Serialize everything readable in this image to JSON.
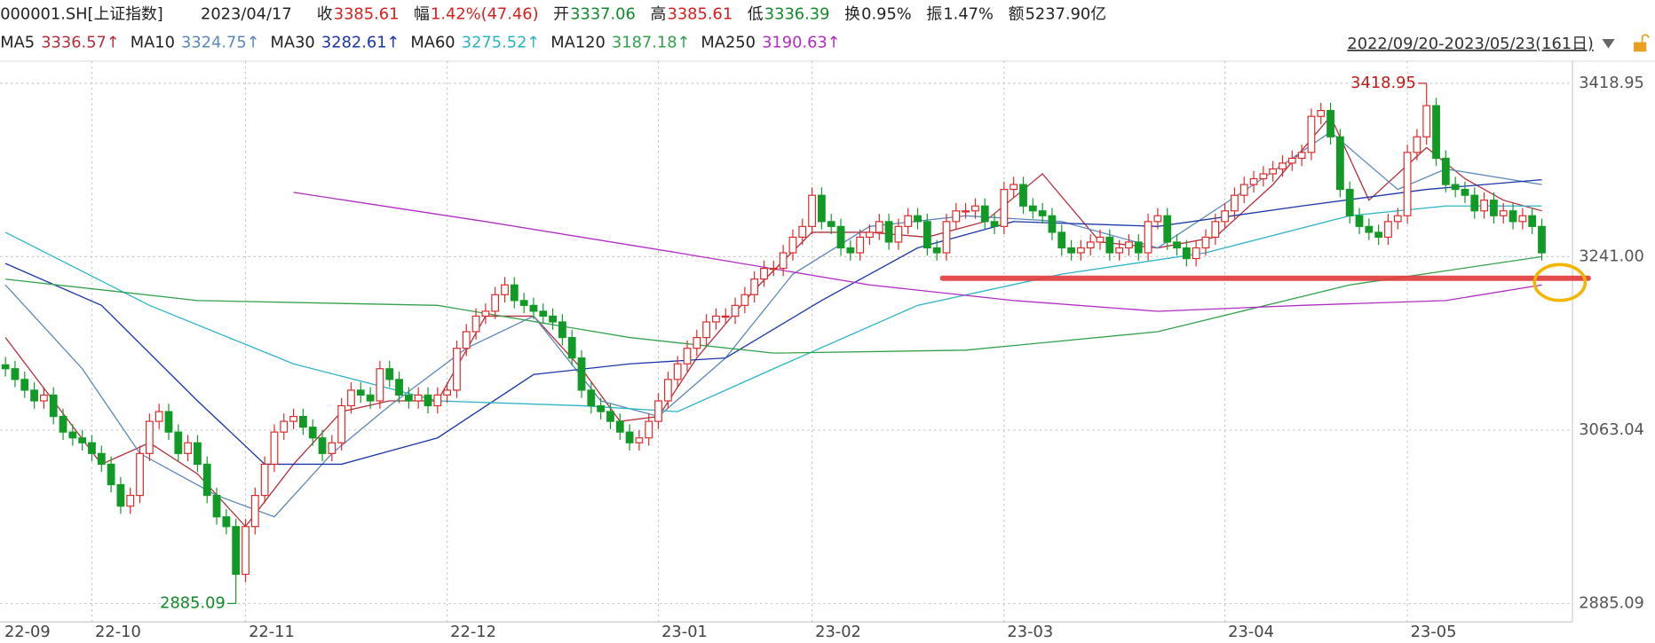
{
  "chart_data": {
    "type": "candlestick",
    "symbol": "000001.SH[上证指数]",
    "date": "2023/04/17",
    "quote": [
      {
        "label": "收",
        "value": "3385.61",
        "color": "#d81e1e"
      },
      {
        "label": "幅",
        "value": "1.42%(47.46)",
        "color": "#d81e1e"
      },
      {
        "label": "开",
        "value": "3337.06",
        "color": "#138a2a"
      },
      {
        "label": "高",
        "value": "3385.61",
        "color": "#d81e1e"
      },
      {
        "label": "低",
        "value": "3336.39",
        "color": "#138a2a"
      },
      {
        "label": "换",
        "value": "0.95%",
        "color": "#222222"
      },
      {
        "label": "振",
        "value": "1.47%",
        "color": "#222222"
      },
      {
        "label": "额",
        "value": "5237.90亿",
        "color": "#222222"
      }
    ],
    "range": "2022/09/20-2023/05/23(161日)",
    "up_color": "#e02828",
    "down_color": "#129a26",
    "xlim": [
      -0.55,
      163.2
    ],
    "ylim": [
      2866.15,
      3437.34
    ],
    "yticks": [
      3418.95,
      {
        "value": 3241,
        "label": "3241.00"
      },
      3063.04,
      2885.09
    ],
    "xticks": [
      {
        "value": 0,
        "label": "22-09"
      },
      {
        "value": 9,
        "label": "22-10"
      },
      {
        "value": 25,
        "label": "22-11"
      },
      {
        "value": 46,
        "label": "22-12"
      },
      {
        "value": 68,
        "label": "23-01"
      },
      {
        "value": 84,
        "label": "23-02"
      },
      {
        "value": 104,
        "label": "23-03"
      },
      {
        "value": 127,
        "label": "23-04"
      },
      {
        "value": 146,
        "label": "23-05"
      }
    ],
    "grid": true,
    "annotations": [
      {
        "index": 148,
        "value": 3418.95,
        "color": "#c81818"
      },
      {
        "index": 24,
        "value": 2885.09,
        "color": "#138a2a"
      }
    ],
    "open": [
      3130,
      3126,
      3115,
      3104,
      3093,
      3099,
      3077,
      3061,
      3055,
      3050,
      3039,
      3028,
      3007,
      2985,
      2996,
      3039,
      3072,
      3082,
      3061,
      3039,
      3050,
      3028,
      2996,
      2974,
      2964,
      2915,
      2964,
      2996,
      3028,
      3061,
      3072,
      3077,
      3066,
      3055,
      3039,
      3050,
      3088,
      3104,
      3099,
      3093,
      3126,
      3115,
      3099,
      3093,
      3099,
      3088,
      3099,
      3104,
      3147,
      3164,
      3180,
      3185,
      3202,
      3212,
      3196,
      3191,
      3185,
      3180,
      3174,
      3158,
      3137,
      3104,
      3088,
      3082,
      3072,
      3061,
      3050,
      3055,
      3072,
      3093,
      3115,
      3131,
      3147,
      3158,
      3174,
      3180,
      3180,
      3191,
      3202,
      3218,
      3229,
      3229,
      3245,
      3261,
      3272,
      3304,
      3277,
      3272,
      3250,
      3245,
      3261,
      3266,
      3277,
      3256,
      3272,
      3283,
      3277,
      3250,
      3245,
      3277,
      3288,
      3288,
      3293,
      3277,
      3272,
      3310,
      3315,
      3293,
      3288,
      3283,
      3266,
      3250,
      3245,
      3250,
      3256,
      3261,
      3245,
      3250,
      3256,
      3245,
      3277,
      3283,
      3256,
      3250,
      3239,
      3250,
      3261,
      3277,
      3288,
      3304,
      3315,
      3321,
      3326,
      3331,
      3337,
      3342,
      3348,
      3385,
      3391,
      3364,
      3310,
      3283,
      3272,
      3266,
      3261,
      3277,
      3283,
      3348,
      3364,
      3396,
      3342,
      3315,
      3310,
      3304,
      3288,
      3299,
      3283,
      3288,
      3277,
      3283,
      3272
    ],
    "high": [
      3138,
      3134,
      3123,
      3112,
      3107,
      3107,
      3085,
      3069,
      3063,
      3058,
      3047,
      3036,
      3015,
      3004,
      3047,
      3080,
      3090,
      3090,
      3069,
      3058,
      3058,
      3036,
      3004,
      2982,
      2972,
      2972,
      3004,
      3036,
      3069,
      3080,
      3085,
      3085,
      3074,
      3063,
      3058,
      3096,
      3112,
      3112,
      3107,
      3134,
      3134,
      3123,
      3107,
      3107,
      3107,
      3107,
      3112,
      3155,
      3172,
      3188,
      3193,
      3210,
      3220,
      3220,
      3204,
      3199,
      3193,
      3188,
      3182,
      3166,
      3145,
      3112,
      3096,
      3090,
      3080,
      3069,
      3063,
      3080,
      3101,
      3123,
      3139,
      3155,
      3166,
      3182,
      3188,
      3188,
      3199,
      3210,
      3226,
      3237,
      3237,
      3253,
      3269,
      3280,
      3312,
      3312,
      3285,
      3280,
      3258,
      3269,
      3274,
      3285,
      3285,
      3280,
      3291,
      3291,
      3285,
      3258,
      3285,
      3296,
      3296,
      3301,
      3301,
      3285,
      3318,
      3323,
      3323,
      3301,
      3296,
      3291,
      3274,
      3258,
      3258,
      3264,
      3269,
      3269,
      3258,
      3264,
      3264,
      3285,
      3291,
      3291,
      3264,
      3258,
      3258,
      3269,
      3285,
      3296,
      3312,
      3323,
      3329,
      3334,
      3339,
      3345,
      3350,
      3356,
      3393,
      3399,
      3399,
      3372,
      3318,
      3291,
      3280,
      3274,
      3285,
      3291,
      3356,
      3372,
      3418.95,
      3404,
      3350,
      3323,
      3318,
      3312,
      3307,
      3307,
      3296,
      3296,
      3291,
      3291,
      3280
    ],
    "low": [
      3118,
      3107,
      3096,
      3085,
      3085,
      3069,
      3053,
      3047,
      3042,
      3031,
      3020,
      2999,
      2977,
      2977,
      2988,
      3031,
      3064,
      3053,
      3031,
      3031,
      3020,
      2988,
      2966,
      2956,
      2885.09,
      2907,
      2956,
      2988,
      3020,
      3053,
      3064,
      3058,
      3047,
      3031,
      3031,
      3042,
      3080,
      3091,
      3085,
      3085,
      3107,
      3091,
      3085,
      3085,
      3080,
      3080,
      3091,
      3096,
      3139,
      3156,
      3172,
      3177,
      3194,
      3188,
      3183,
      3177,
      3172,
      3166,
      3150,
      3129,
      3096,
      3080,
      3074,
      3064,
      3053,
      3042,
      3042,
      3047,
      3064,
      3085,
      3107,
      3123,
      3139,
      3150,
      3166,
      3172,
      3172,
      3183,
      3194,
      3210,
      3221,
      3221,
      3237,
      3253,
      3264,
      3269,
      3264,
      3242,
      3237,
      3237,
      3253,
      3258,
      3248,
      3248,
      3264,
      3269,
      3242,
      3237,
      3237,
      3269,
      3280,
      3280,
      3269,
      3264,
      3264,
      3302,
      3285,
      3280,
      3275,
      3258,
      3242,
      3237,
      3237,
      3242,
      3248,
      3237,
      3237,
      3242,
      3237,
      3237,
      3269,
      3248,
      3242,
      3231,
      3231,
      3242,
      3253,
      3269,
      3280,
      3296,
      3307,
      3313,
      3318,
      3323,
      3329,
      3334,
      3340,
      3377,
      3356,
      3302,
      3275,
      3264,
      3258,
      3253,
      3253,
      3269,
      3275,
      3340,
      3356,
      3334,
      3307,
      3302,
      3296,
      3280,
      3280,
      3275,
      3275,
      3269,
      3269,
      3264,
      3237
    ],
    "close": [
      3126,
      3115,
      3104,
      3093,
      3099,
      3077,
      3061,
      3055,
      3050,
      3039,
      3028,
      3007,
      2985,
      2996,
      3039,
      3072,
      3082,
      3061,
      3039,
      3050,
      3028,
      2996,
      2974,
      2964,
      2915,
      2964,
      2996,
      3028,
      3061,
      3072,
      3077,
      3066,
      3055,
      3039,
      3050,
      3088,
      3104,
      3099,
      3093,
      3126,
      3115,
      3099,
      3093,
      3099,
      3088,
      3099,
      3104,
      3147,
      3164,
      3180,
      3185,
      3202,
      3212,
      3196,
      3191,
      3185,
      3180,
      3174,
      3158,
      3137,
      3104,
      3088,
      3082,
      3072,
      3061,
      3050,
      3055,
      3072,
      3093,
      3115,
      3131,
      3147,
      3158,
      3174,
      3180,
      3180,
      3191,
      3202,
      3218,
      3229,
      3229,
      3245,
      3261,
      3272,
      3304,
      3277,
      3272,
      3250,
      3245,
      3261,
      3266,
      3277,
      3256,
      3272,
      3283,
      3277,
      3250,
      3245,
      3277,
      3288,
      3288,
      3293,
      3277,
      3272,
      3310,
      3315,
      3293,
      3288,
      3283,
      3266,
      3250,
      3245,
      3250,
      3256,
      3261,
      3245,
      3250,
      3256,
      3245,
      3277,
      3283,
      3256,
      3250,
      3239,
      3250,
      3261,
      3277,
      3288,
      3304,
      3315,
      3321,
      3326,
      3331,
      3337,
      3342,
      3348,
      3385,
      3391,
      3364,
      3310,
      3283,
      3272,
      3266,
      3261,
      3277,
      3283,
      3348,
      3364,
      3396,
      3342,
      3315,
      3310,
      3304,
      3288,
      3299,
      3283,
      3288,
      3277,
      3283,
      3272,
      3245
    ],
    "series": [
      {
        "name": "MA5",
        "legend_value": "3336.57↑",
        "color": "#b3303c",
        "x": [
          0,
          5,
          10,
          15,
          20,
          25,
          30,
          35,
          40,
          45,
          50,
          55,
          60,
          64,
          68,
          72,
          78,
          84,
          90,
          96,
          102,
          108,
          114,
          120,
          126,
          132,
          138,
          142,
          148,
          152,
          156,
          160
        ],
        "values": [
          3158,
          3093,
          3028,
          3050,
          3018,
          2964,
          3028,
          3082,
          3093,
          3093,
          3180,
          3180,
          3126,
          3072,
          3077,
          3137,
          3207,
          3266,
          3266,
          3261,
          3277,
          3326,
          3256,
          3250,
          3261,
          3315,
          3385,
          3299,
          3353,
          3321,
          3299,
          3288
        ]
      },
      {
        "name": "MA10",
        "legend_value": "3324.75↑",
        "color": "#5b88bb",
        "x": [
          0,
          8,
          14,
          22,
          28,
          34,
          40,
          48,
          55,
          62,
          68,
          75,
          82,
          90,
          100,
          110,
          120,
          130,
          138,
          145,
          150,
          160
        ],
        "values": [
          3212,
          3126,
          3039,
          2996,
          2974,
          3039,
          3088,
          3147,
          3180,
          3093,
          3077,
          3137,
          3223,
          3272,
          3283,
          3277,
          3250,
          3315,
          3369,
          3310,
          3331,
          3315
        ]
      },
      {
        "name": "MA30",
        "legend_value": "3282.61↑",
        "color": "#1a36a8",
        "x": [
          0,
          10,
          20,
          27,
          35,
          45,
          55,
          65,
          75,
          85,
          95,
          105,
          120,
          135,
          148,
          160
        ],
        "values": [
          3234,
          3191,
          3093,
          3028,
          3028,
          3055,
          3120,
          3131,
          3137,
          3196,
          3250,
          3277,
          3272,
          3293,
          3310,
          3320
        ]
      },
      {
        "name": "MA60",
        "legend_value": "3275.52↑",
        "color": "#2bb4c6",
        "x": [
          0,
          15,
          30,
          45,
          60,
          70,
          80,
          95,
          110,
          125,
          140,
          150,
          160
        ],
        "values": [
          3266,
          3191,
          3131,
          3093,
          3088,
          3082,
          3126,
          3191,
          3223,
          3245,
          3283,
          3293,
          3293
        ]
      },
      {
        "name": "MA120",
        "legend_value": "3187.18↑",
        "color": "#34a04c",
        "x": [
          0,
          20,
          45,
          65,
          80,
          100,
          120,
          140,
          160
        ],
        "values": [
          3218,
          3196,
          3191,
          3158,
          3142,
          3145,
          3164,
          3212,
          3241
        ]
      },
      {
        "name": "MA250",
        "legend_value": "3190.63↑",
        "color": "#b02cc2",
        "x": [
          30,
          50,
          70,
          90,
          105,
          120,
          135,
          150,
          160
        ],
        "values": [
          3307,
          3277,
          3245,
          3212,
          3196,
          3185,
          3191,
          3196,
          3212
        ]
      }
    ]
  }
}
